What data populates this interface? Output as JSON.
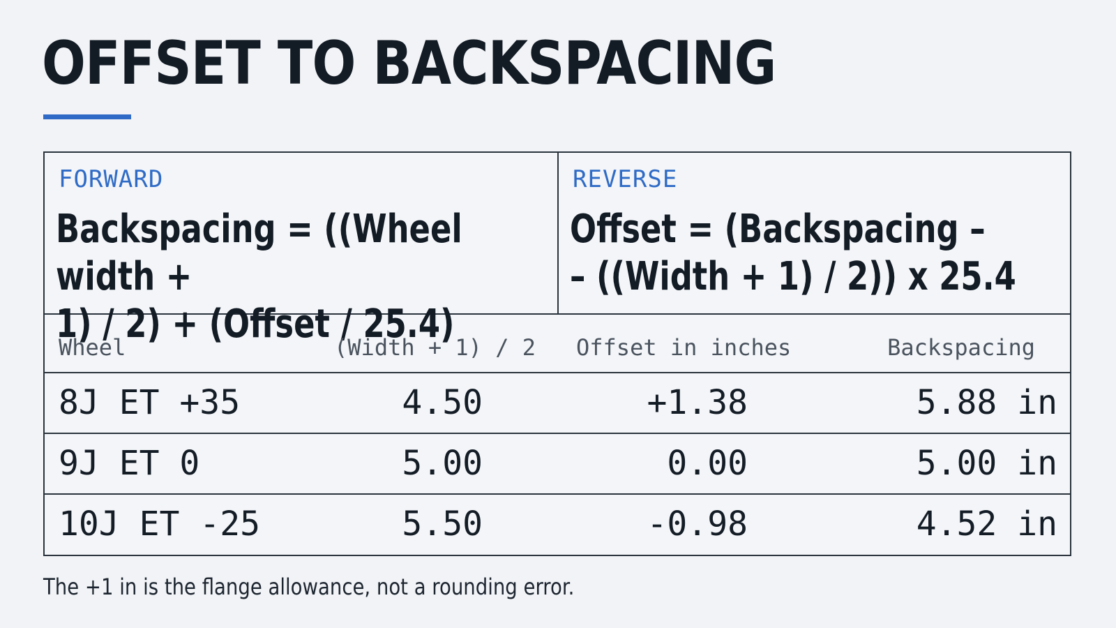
{
  "title": "OFFSET TO BACKSPACING",
  "formulas": {
    "forward": {
      "label": "FORWARD",
      "line1": "Backspacing = ((Wheel width +",
      "line2": "1) / 2) + (Offset / 25.4)"
    },
    "reverse": {
      "label": "REVERSE",
      "line1": "Offset = (Backspacing –",
      "line2": "– ((Width + 1) / 2)) x 25.4"
    }
  },
  "table": {
    "headers": {
      "wheel": "Wheel",
      "half_width": "(Width + 1) / 2",
      "offset_in": "Offset in inches",
      "backspacing": "Backspacing"
    },
    "rows": [
      {
        "wheel": "8J ET +35",
        "half_width": "4.50",
        "offset_in": "+1.38",
        "backspacing": "5.88 in"
      },
      {
        "wheel": "9J ET 0",
        "half_width": "5.00",
        "offset_in": "0.00",
        "backspacing": "5.00 in"
      },
      {
        "wheel": "10J ET -25",
        "half_width": "5.50",
        "offset_in": "-0.98",
        "backspacing": "4.52 in"
      }
    ]
  },
  "footnote": "The +1 in is the flange allowance, not a rounding error.",
  "colors": {
    "accent": "#2f6bc6",
    "text": "#131b25",
    "border": "#2a333d",
    "background": "#f1f3f6"
  }
}
